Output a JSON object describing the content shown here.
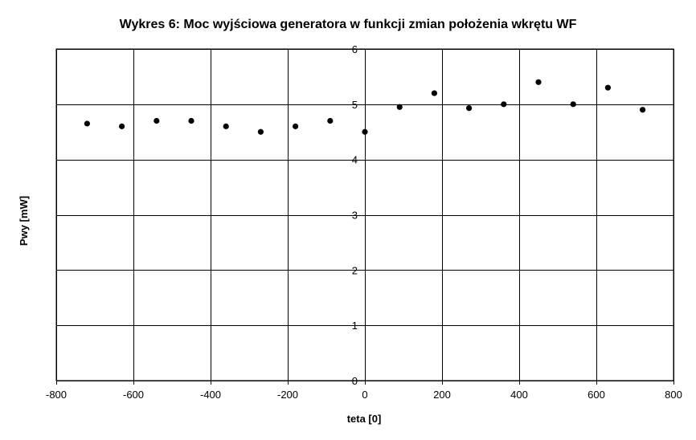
{
  "chart_data": {
    "type": "scatter",
    "title": "Wykres 6: Moc wyjściowa generatora w funkcji zmian położenia wkrętu WF",
    "xlabel": "teta [0]",
    "ylabel": "Pwy [mW]",
    "xlim": [
      -800,
      800
    ],
    "ylim": [
      0,
      6
    ],
    "xticks": [
      -800,
      -600,
      -400,
      -200,
      0,
      200,
      400,
      600,
      800
    ],
    "yticks": [
      0,
      1,
      2,
      3,
      4,
      5,
      6
    ],
    "grid": true,
    "legend": "none",
    "marker_color": "#000000",
    "series": [
      {
        "x": [
          -720,
          -630,
          -540,
          -450,
          -360,
          -270,
          -180,
          -90,
          0,
          90,
          180,
          270,
          360,
          450,
          540,
          630,
          720
        ],
        "y": [
          4.65,
          4.6,
          4.7,
          4.7,
          4.6,
          4.5,
          4.6,
          4.7,
          4.5,
          4.95,
          5.2,
          4.93,
          5.0,
          5.4,
          5.0,
          5.3,
          4.9
        ]
      }
    ]
  }
}
